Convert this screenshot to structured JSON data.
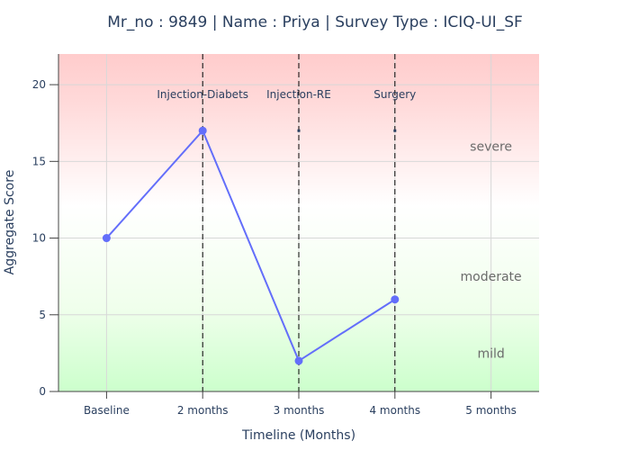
{
  "chart_data": {
    "type": "line",
    "title": "Mr_no : 9849 | Name : Priya | Survey Type : ICIQ-UI_SF",
    "xlabel": "Timeline (Months)",
    "ylabel": "Aggregate Score",
    "categories": [
      "Baseline",
      "2 months",
      "3 months",
      "4 months",
      "5 months"
    ],
    "ylim": [
      0,
      22
    ],
    "yticks": [
      0,
      5,
      10,
      15,
      20
    ],
    "grid": true,
    "series": [
      {
        "values": [
          10,
          17,
          2,
          6,
          null
        ],
        "color": "#636efa"
      }
    ],
    "events": [
      {
        "label": "Injection-Diabets",
        "category": "2 months",
        "marker_value": 17
      },
      {
        "label": "Injection-RE",
        "category": "3 months",
        "marker_value": 17
      },
      {
        "label": "Surgery",
        "category": "4 months",
        "marker_value": 17
      }
    ],
    "bands": [
      {
        "label": "severe",
        "from": 15,
        "to": 22,
        "color_top": "#ffcccc",
        "color_bottom": "#ffffff"
      },
      {
        "label": "moderate",
        "from": 5,
        "to": 15,
        "color_top": "#ffffff",
        "color_bottom": "#e9ffe4"
      },
      {
        "label": "mild",
        "from": 0,
        "to": 5,
        "color_top": "#e9ffe4",
        "color_bottom": "#ccffcc"
      }
    ],
    "band_label_values": {
      "severe": 16,
      "moderate": 7.5,
      "mild": 2.5
    }
  }
}
